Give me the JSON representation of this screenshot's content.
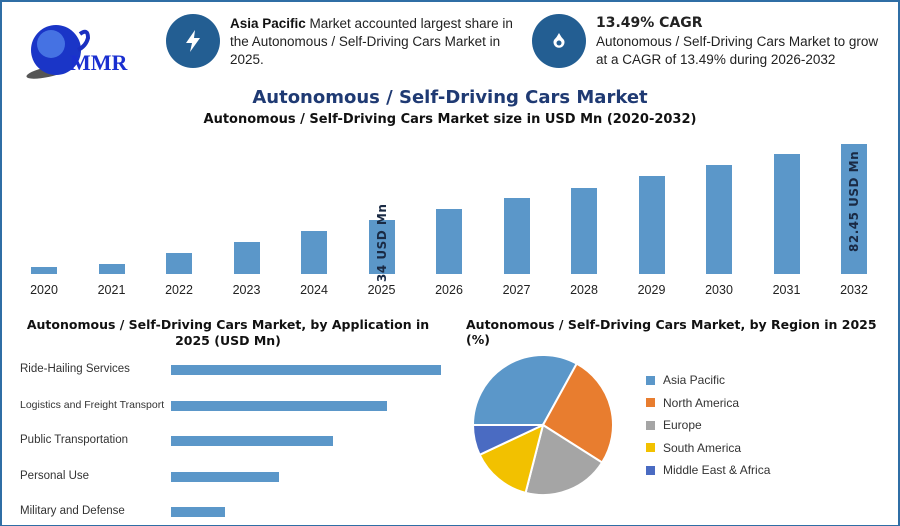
{
  "logo": {
    "text": "MMR"
  },
  "info_left": {
    "bold": "Asia Pacific",
    "text": " Market accounted largest share in the Autonomous / Self-Driving Cars Market in 2025.",
    "icon": "lightning-icon"
  },
  "info_right": {
    "bold": "13.49% CAGR",
    "text": "Autonomous / Self-Driving Cars Market to grow at a CAGR of 13.49% during 2026-2032",
    "icon": "flame-drop-icon"
  },
  "page_title": "Autonomous / Self-Driving Cars Market",
  "chart_data": [
    {
      "type": "bar",
      "title": "Autonomous / Self-Driving Cars Market size in USD Mn (2020-2032)",
      "categories": [
        "2020",
        "2021",
        "2022",
        "2023",
        "2024",
        "2025",
        "2026",
        "2027",
        "2028",
        "2029",
        "2030",
        "2031",
        "2032"
      ],
      "values": [
        4.4,
        6.3,
        13.3,
        20.3,
        27.3,
        34,
        41.2,
        48.2,
        54.5,
        62.1,
        69.1,
        76.1,
        82.45
      ],
      "data_labels": {
        "2025": "34 USD Mn",
        "2032": "82.45 USD Mn"
      },
      "color": "#5b97c9",
      "grid": false
    },
    {
      "type": "bar",
      "orientation": "horizontal",
      "title": "Autonomous / Self-Driving Cars Market, by Application in 2025 (USD Mn)",
      "categories": [
        "Ride-Hailing Services",
        "Logistics and Freight Transport",
        "Public Transportation",
        "Personal Use",
        "Military and Defense"
      ],
      "values": [
        100,
        80,
        60,
        40,
        20
      ],
      "color": "#5b97c9",
      "grid": false
    },
    {
      "type": "pie",
      "title": "Autonomous / Self-Driving Cars Market, by Region in 2025 (%)",
      "categories": [
        "Asia Pacific",
        "North America",
        "Europe",
        "South America",
        "Middle East & Africa"
      ],
      "values": [
        33,
        26,
        20,
        14,
        7
      ],
      "colors": [
        "#5b97c9",
        "#e87d2f",
        "#a5a5a5",
        "#f2c100",
        "#4a6bc2"
      ],
      "legend": "right"
    }
  ]
}
